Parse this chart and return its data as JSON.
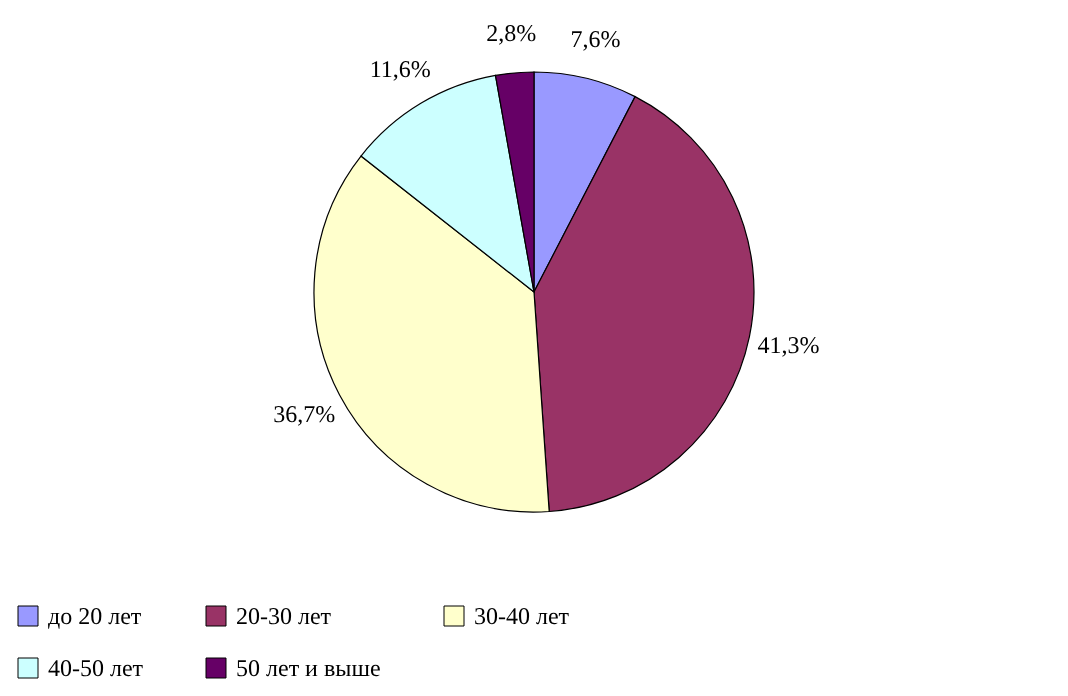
{
  "chart_data": {
    "type": "pie",
    "categories": [
      "до 20 лет",
      "20-30 лет",
      "30-40 лет",
      "40-50 лет",
      "50 лет и выше"
    ],
    "values": [
      7.6,
      41.3,
      36.7,
      11.6,
      2.8
    ],
    "colors": [
      "#9999ff",
      "#993366",
      "#ffffcc",
      "#ccffff",
      "#660066"
    ],
    "value_labels": [
      "7,6%",
      "41,3%",
      "36,7%",
      "11,6%",
      "2,8%"
    ],
    "legend": "bottom"
  }
}
